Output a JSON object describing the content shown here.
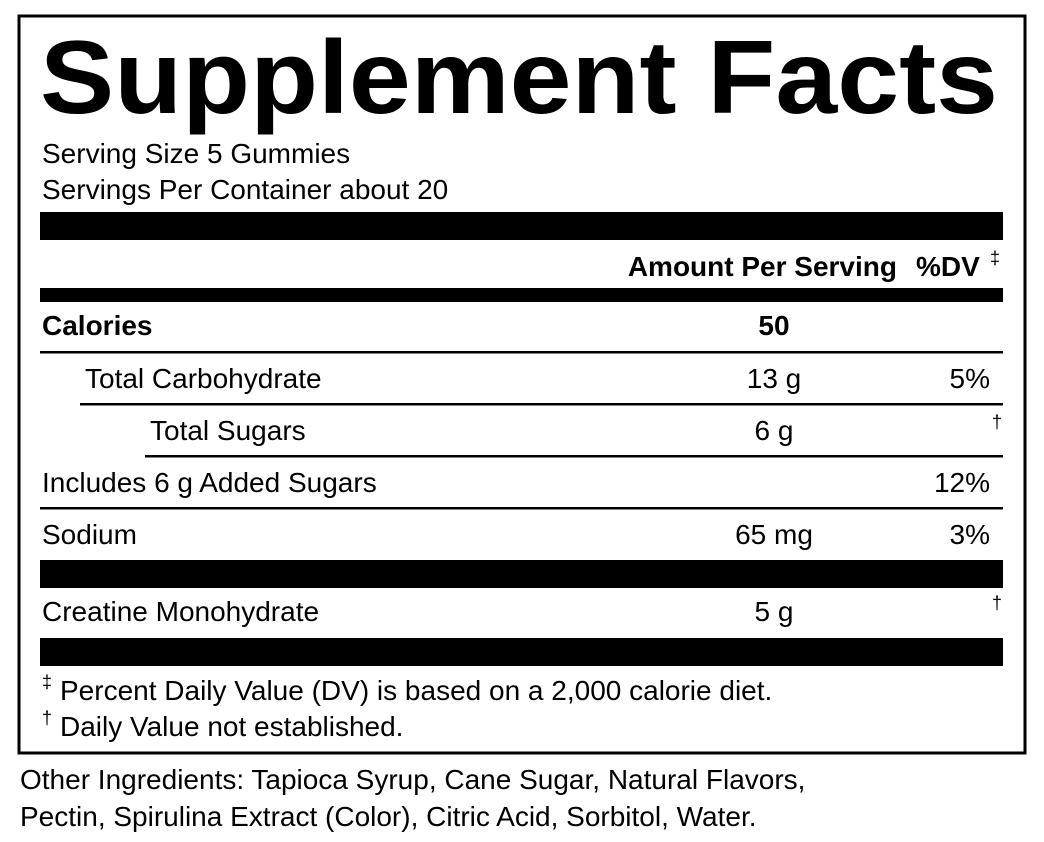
{
  "title": "Supplement Facts",
  "serving_size": "Serving Size 5 Gummies",
  "servings_per_container": "Servings Per Container about 20",
  "column_headers": {
    "amount": "Amount Per Serving",
    "dv": "%DV",
    "dv_mark": "‡"
  },
  "rows": [
    {
      "label": "Calories",
      "amount": "50"
    },
    {
      "label": "Total Carbohydrate",
      "amount": "13 g",
      "dv": "5%"
    },
    {
      "label": "Total Sugars",
      "amount": "6 g",
      "dv_mark": "†"
    },
    {
      "label": "Includes 6 g Added Sugars",
      "dv": "12%"
    },
    {
      "label": "Sodium",
      "amount": "65 mg",
      "dv": "3%"
    },
    {
      "label": "Creatine Monohydrate",
      "amount": "5 g",
      "dv_mark": "†"
    }
  ],
  "footnotes": [
    {
      "mark": "‡",
      "text": "Percent Daily Value (DV) is based on a 2,000 calorie diet."
    },
    {
      "mark": "†",
      "text": "Daily Value not established."
    }
  ],
  "other_ingredients": [
    "Other Ingredients: Tapioca Syrup, Cane Sugar, Natural Flavors,",
    "Pectin, Spirulina Extract (Color), Citric Acid, Sorbitol, Water."
  ]
}
